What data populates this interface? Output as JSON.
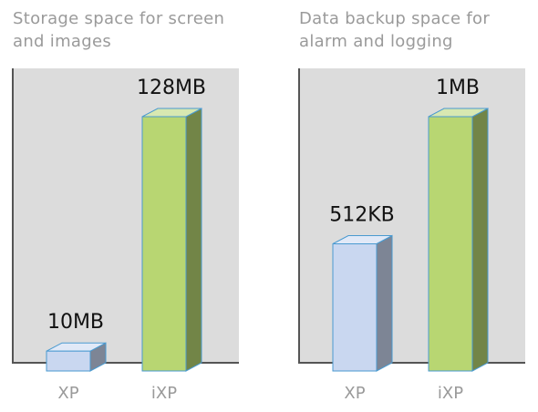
{
  "chart_data": [
    {
      "type": "bar",
      "title": "Storage space for screen and images",
      "categories": [
        "XP",
        "iXP"
      ],
      "values": [
        10,
        128
      ],
      "value_labels": [
        "10MB",
        "128MB"
      ],
      "colors": [
        "#c9d7f0",
        "#b8d672"
      ]
    },
    {
      "type": "bar",
      "title": "Data backup space for alarm and logging",
      "categories": [
        "XP",
        "iXP"
      ],
      "values": [
        512,
        1024
      ],
      "value_labels": [
        "512KB",
        "1MB"
      ],
      "colors": [
        "#c9d7f0",
        "#b8d672"
      ]
    }
  ]
}
